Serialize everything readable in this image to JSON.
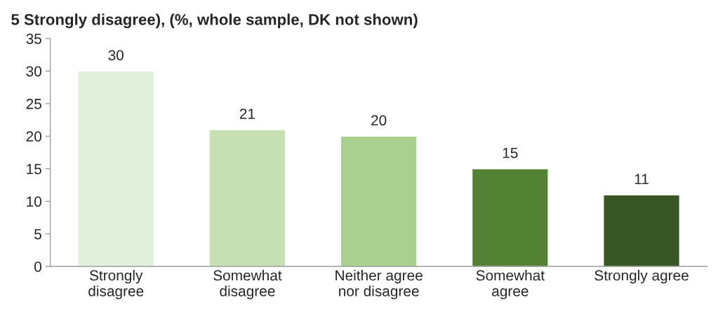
{
  "chart_data": {
    "type": "bar",
    "title": "5 Strongly disagree), (%, whole sample, DK not shown)",
    "categories": [
      "Strongly\ndisagree",
      "Somewhat\ndisagree",
      "Neither agree\nnor disagree",
      "Somewhat\nagree",
      "Strongly agree"
    ],
    "values": [
      30,
      21,
      20,
      15,
      11
    ],
    "colors": [
      "#e2efda",
      "#c6e0b4",
      "#a9d08e",
      "#548235",
      "#375623"
    ],
    "ylim": [
      0,
      35
    ],
    "yticks": [
      0,
      5,
      10,
      15,
      20,
      25,
      30,
      35
    ],
    "data_labels": true,
    "grid": false,
    "legend": false
  }
}
